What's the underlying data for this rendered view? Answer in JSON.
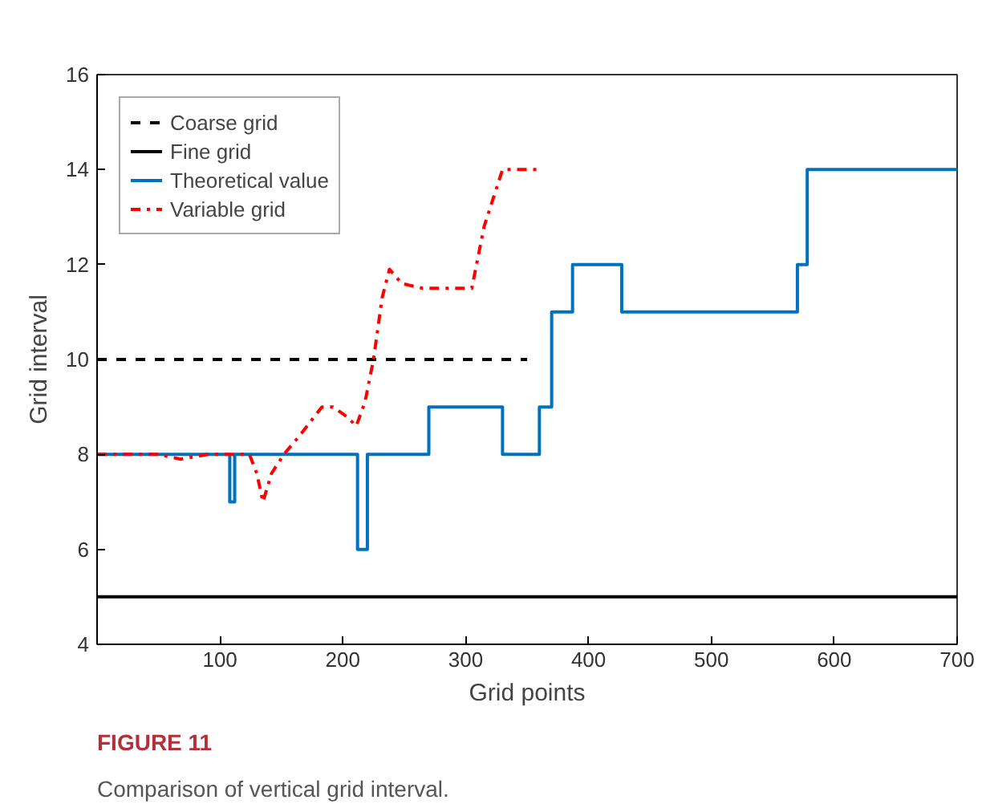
{
  "chart_data": {
    "type": "line",
    "xlabel": "Grid points",
    "ylabel": "Grid interval",
    "xlim": [
      0,
      700
    ],
    "ylim": [
      4,
      16
    ],
    "xticks": [
      100,
      200,
      300,
      400,
      500,
      600,
      700
    ],
    "yticks": [
      4,
      6,
      8,
      10,
      12,
      14,
      16
    ],
    "grid": false,
    "legend": "top left",
    "series": [
      {
        "name": "Coarse grid",
        "color": "#000000",
        "line_style": "dashed",
        "x": [
          0,
          350
        ],
        "values": [
          10,
          10
        ]
      },
      {
        "name": "Fine grid",
        "color": "#000000",
        "line_style": "solid",
        "x": [
          0,
          700
        ],
        "values": [
          5,
          5
        ]
      },
      {
        "name": "Theoretical value",
        "color": "#0072bd",
        "line_style": "solid",
        "x": [
          0,
          108,
          108,
          112,
          112,
          212,
          212,
          220,
          220,
          270,
          270,
          330,
          330,
          360,
          360,
          370,
          370,
          387,
          387,
          427,
          427,
          570,
          570,
          578,
          578,
          700
        ],
        "values": [
          8,
          8,
          7,
          7,
          8,
          8,
          6,
          6,
          8,
          8,
          9,
          9,
          8,
          8,
          9,
          9,
          11,
          11,
          12,
          12,
          11,
          11,
          12,
          12,
          14,
          14
        ]
      },
      {
        "name": "Variable grid",
        "color": "#ff0000",
        "line_style": "dashdot",
        "x": [
          0,
          50,
          68,
          90,
          110,
          124,
          130,
          135,
          142,
          152,
          165,
          183,
          192,
          203,
          211,
          218,
          225,
          232,
          238,
          248,
          265,
          285,
          305,
          315,
          330,
          345,
          361
        ],
        "values": [
          8,
          8,
          7.9,
          8,
          8,
          8,
          7.6,
          7,
          7.6,
          8,
          8.4,
          9,
          9,
          8.8,
          8.6,
          9.1,
          10,
          11.3,
          11.9,
          11.6,
          11.5,
          11.5,
          11.5,
          12.8,
          14,
          14,
          14
        ]
      }
    ],
    "annotations": [
      "FIGURE 11",
      "Comparison of vertical grid interval."
    ]
  }
}
